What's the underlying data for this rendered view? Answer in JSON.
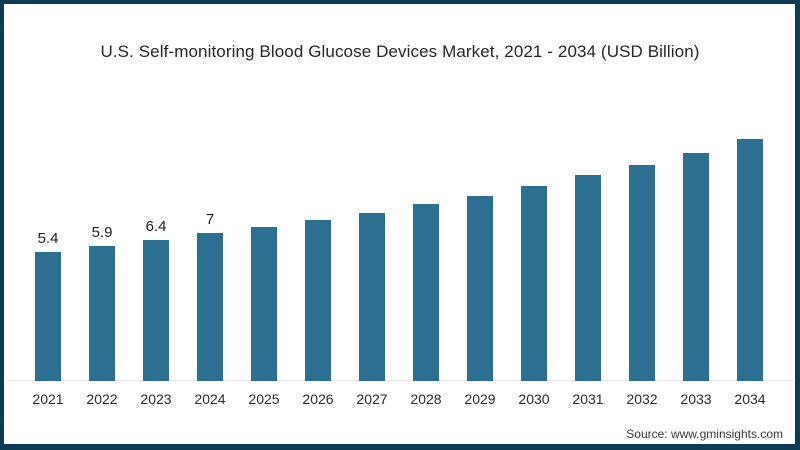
{
  "page": {
    "title": "U.S. Self-monitoring Blood Glucose Devices Market, 2021 - 2034 (USD Billion)",
    "source": "Source: www.gminsights.com"
  },
  "colors": {
    "bar": "#2d6f91",
    "frame_border": "#0f3c55",
    "axis_line": "#e7e7e7",
    "title_text": "#262626",
    "background": "#ffffff"
  },
  "chart_data": {
    "type": "bar",
    "title": "U.S. Self-monitoring Blood Glucose Devices Market, 2021 - 2034 (USD Billion)",
    "unit": "USD Billion",
    "categories": [
      "2021",
      "2022",
      "2023",
      "2024",
      "2025",
      "2026",
      "2027",
      "2028",
      "2029",
      "2030",
      "2031",
      "2032",
      "2033",
      "2034"
    ],
    "values": [
      5.4,
      5.9,
      6.4,
      7,
      7.5,
      8.1,
      8.7,
      9.4,
      10.1,
      10.9,
      11.8,
      12.7,
      13.7,
      14.8
    ],
    "data_labels": [
      "5.4",
      "5.9",
      "6.4",
      "7",
      "",
      "",
      "",
      "",
      "",
      "",
      "",
      "",
      "",
      ""
    ],
    "xlabel": "",
    "ylabel": "",
    "grid": false,
    "legend": false,
    "source": "Source: www.gminsights.com"
  }
}
